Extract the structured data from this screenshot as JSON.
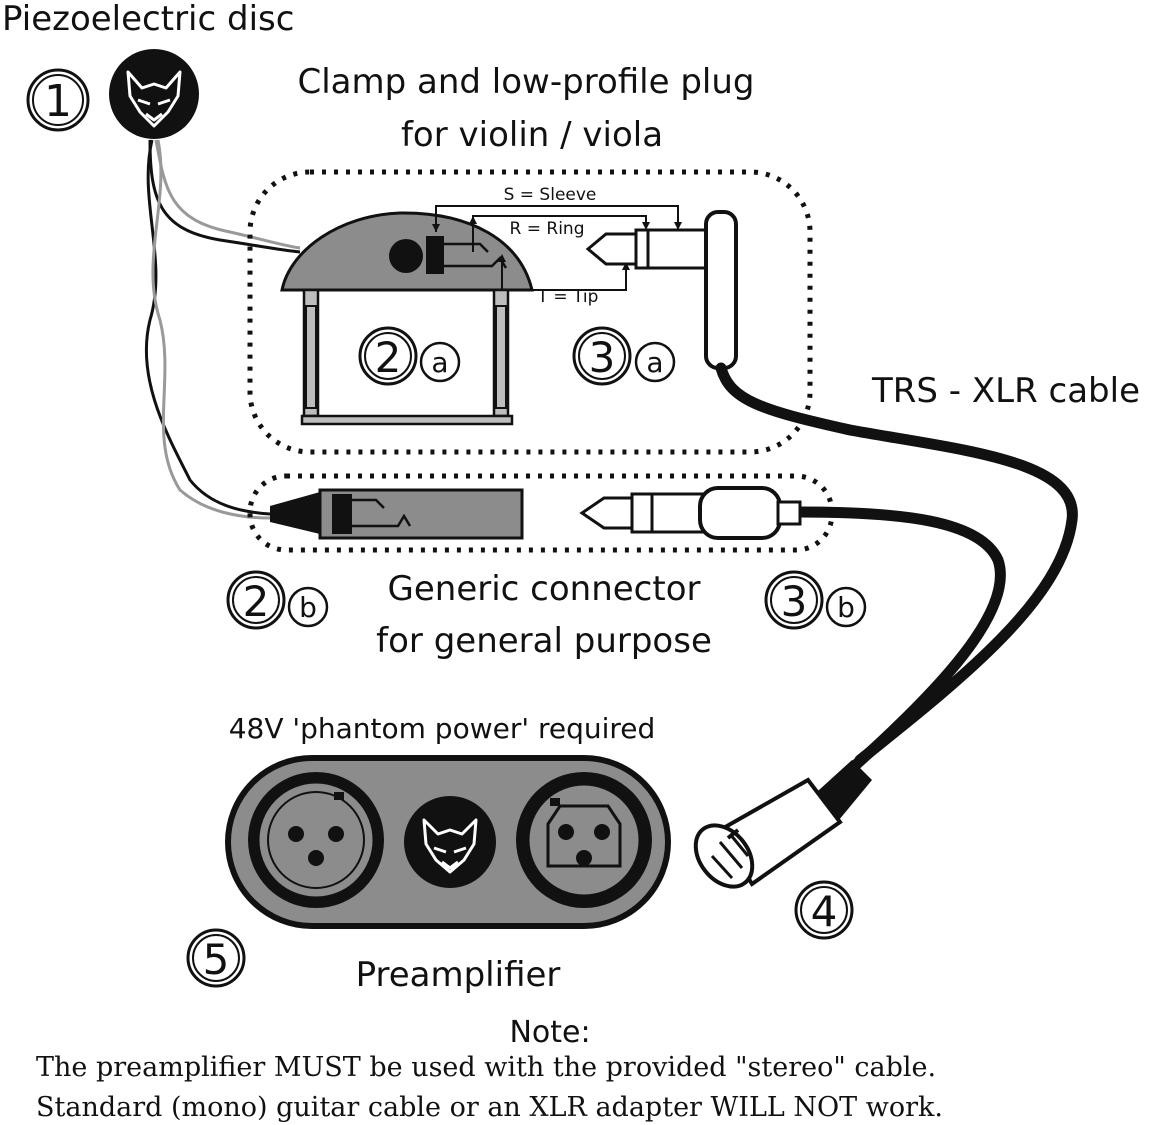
{
  "labels": {
    "disc": "Piezoelectric disc",
    "clamp_line1": "Clamp and low-profile plug",
    "clamp_line2": "for violin / viola",
    "sleeve": "S = Sleeve",
    "ring": "R = Ring",
    "tip": "T = Tip",
    "trs_xlr": "TRS - XLR cable",
    "generic_line1": "Generic connector",
    "generic_line2": "for general purpose",
    "phantom": "48V 'phantom power' required",
    "preamp": "Preamplifier",
    "note_title": "Note:",
    "note_line1": "The preamplifier MUST be used with the provided \"stereo\" cable.",
    "note_line2": "Standard (mono) guitar cable or an XLR adapter WILL NOT work."
  },
  "markers": {
    "m1": "1",
    "m2": "2",
    "m3": "3",
    "m4": "4",
    "m5": "5",
    "a": "a",
    "b": "b"
  },
  "colors": {
    "ink": "#111111",
    "grey_fill": "#8c8c8c",
    "light_grey": "#bdbdbd",
    "white": "#ffffff"
  }
}
